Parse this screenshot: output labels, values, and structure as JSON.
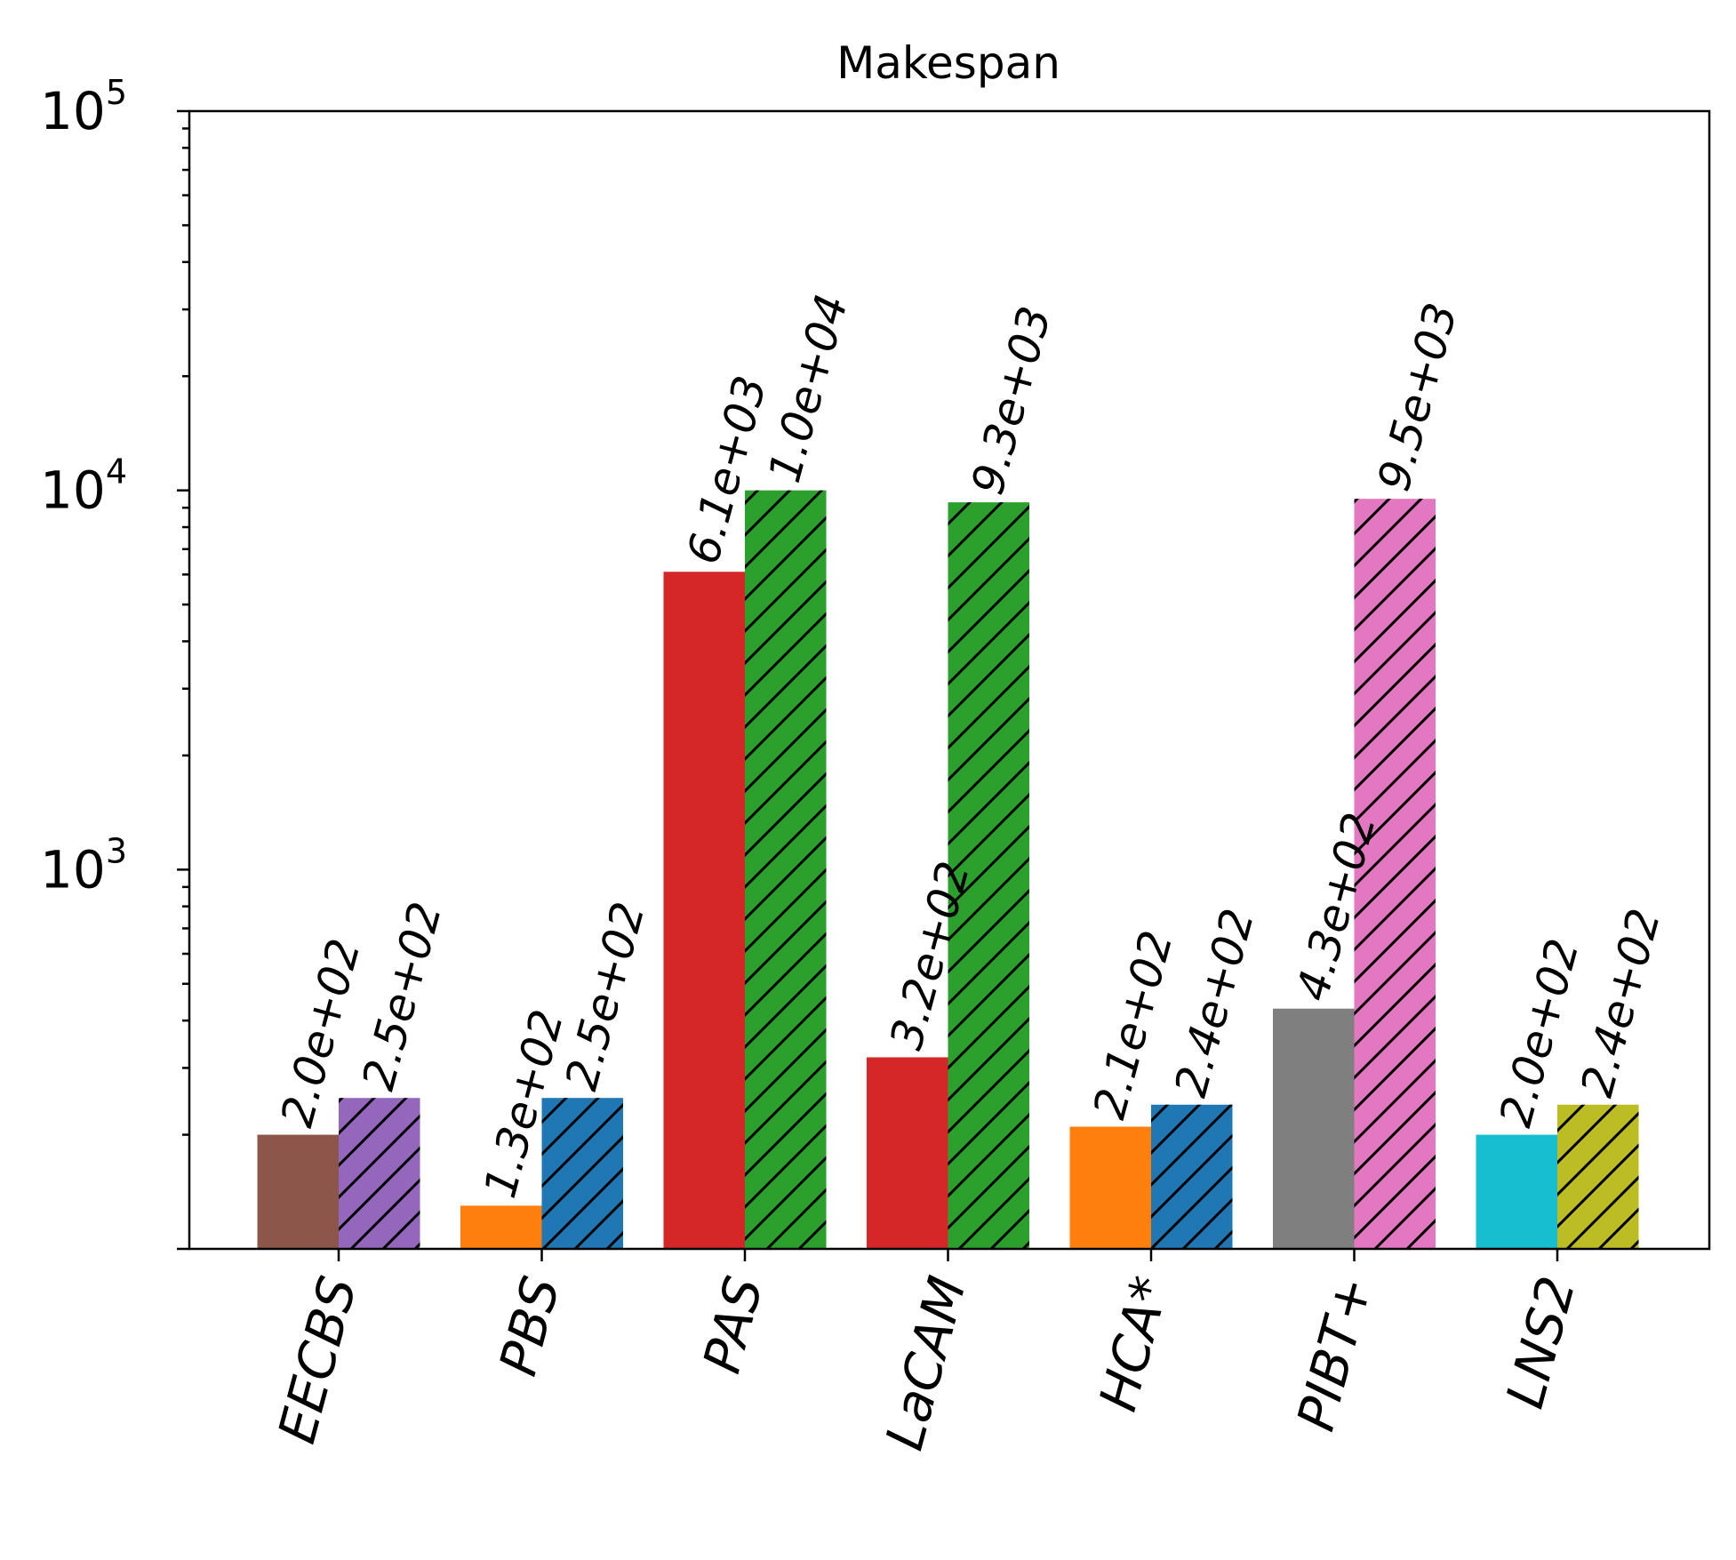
{
  "chart_data": {
    "type": "bar",
    "title": "Makespan",
    "xlabel": "",
    "ylabel": "",
    "yscale": "log",
    "ylim": [
      100,
      100000
    ],
    "ytick_labels": [
      {
        "base": "10",
        "exp": "3",
        "value": 1000
      },
      {
        "base": "10",
        "exp": "4",
        "value": 10000
      },
      {
        "base": "10",
        "exp": "5",
        "value": 100000
      }
    ],
    "grid": false,
    "categories": [
      "EECBS",
      "PBS",
      "PAS",
      "LaCAM",
      "HCA*",
      "PIBT+",
      "LNS2"
    ],
    "series": [
      {
        "values": [
          200,
          130,
          6100,
          320,
          210,
          430,
          200
        ],
        "labels": [
          "2.0e+02",
          "1.3e+02",
          "6.1e+03",
          "3.2e+02",
          "2.1e+02",
          "4.3e+02",
          "2.0e+02"
        ],
        "colors": [
          "#8c564b",
          "#ff7f0e",
          "#d62728",
          "#d62728",
          "#ff7f0e",
          "#7f7f7f",
          "#17becf"
        ],
        "hatch": false
      },
      {
        "values": [
          250,
          250,
          10000,
          9300,
          240,
          9500,
          240
        ],
        "labels": [
          "2.5e+02",
          "2.5e+02",
          "1.0e+04",
          "9.3e+03",
          "2.4e+02",
          "9.5e+03",
          "2.4e+02"
        ],
        "colors": [
          "#9467bd",
          "#1f77b4",
          "#2ca02c",
          "#2ca02c",
          "#1f77b4",
          "#e377c2",
          "#bcbd22"
        ],
        "hatch": true
      }
    ]
  }
}
